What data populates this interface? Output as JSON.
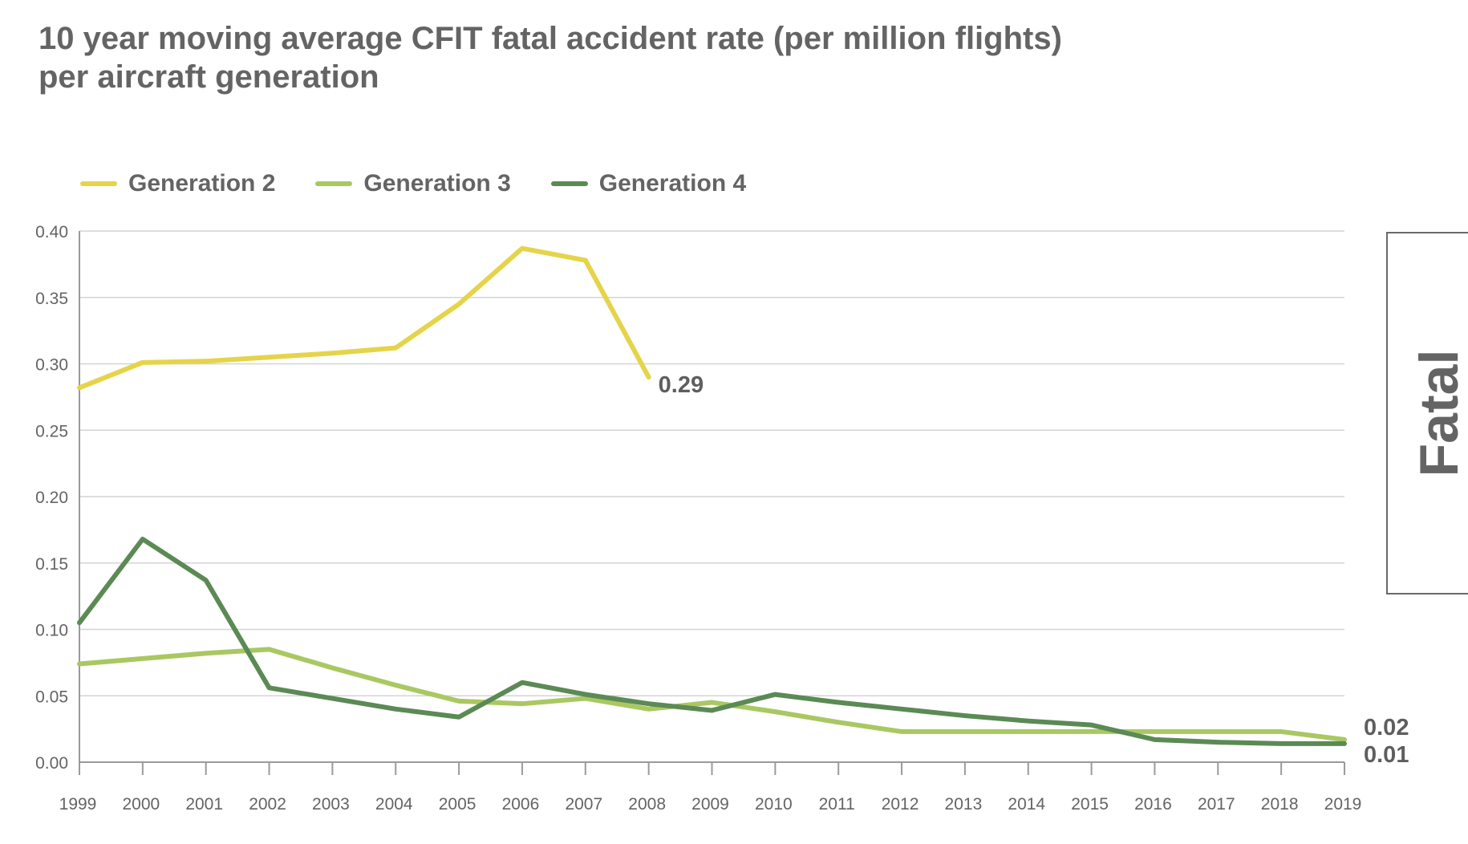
{
  "chart_data": {
    "type": "line",
    "title": "10 year moving average CFIT fatal accident rate (per million flights)",
    "title_line2": "per aircraft generation",
    "side_label": "Fatal",
    "xlabel": "",
    "ylabel": "",
    "x": [
      "1999",
      "2000",
      "2001",
      "2002",
      "2003",
      "2004",
      "2005",
      "2006",
      "2007",
      "2008",
      "2009",
      "2010",
      "2011",
      "2012",
      "2013",
      "2014",
      "2015",
      "2016",
      "2017",
      "2018",
      "2019"
    ],
    "yticks": [
      "0.00",
      "0.05",
      "0.10",
      "0.15",
      "0.20",
      "0.25",
      "0.30",
      "0.35",
      "0.40"
    ],
    "ylim": [
      0,
      0.4
    ],
    "grid": true,
    "legend_position": "top-left",
    "series": [
      {
        "name": "Generation 2",
        "color": "#e5d44a",
        "values": [
          0.282,
          0.301,
          0.302,
          0.305,
          0.308,
          0.312,
          0.345,
          0.387,
          0.378,
          0.29,
          null,
          null,
          null,
          null,
          null,
          null,
          null,
          null,
          null,
          null,
          null
        ],
        "end_label": "0.29"
      },
      {
        "name": "Generation 3",
        "color": "#a9c862",
        "values": [
          0.074,
          0.078,
          0.082,
          0.085,
          0.071,
          0.058,
          0.046,
          0.044,
          0.048,
          0.04,
          0.045,
          0.038,
          0.03,
          0.023,
          0.023,
          0.023,
          0.023,
          0.023,
          0.023,
          0.023,
          0.017
        ],
        "end_label": "0.02"
      },
      {
        "name": "Generation 4",
        "color": "#5b8a55",
        "values": [
          0.105,
          0.168,
          0.137,
          0.056,
          0.048,
          0.04,
          0.034,
          0.06,
          0.051,
          0.044,
          0.039,
          0.051,
          0.045,
          0.04,
          0.035,
          0.031,
          0.028,
          0.017,
          0.015,
          0.014,
          0.014
        ],
        "end_label": "0.01"
      }
    ]
  }
}
